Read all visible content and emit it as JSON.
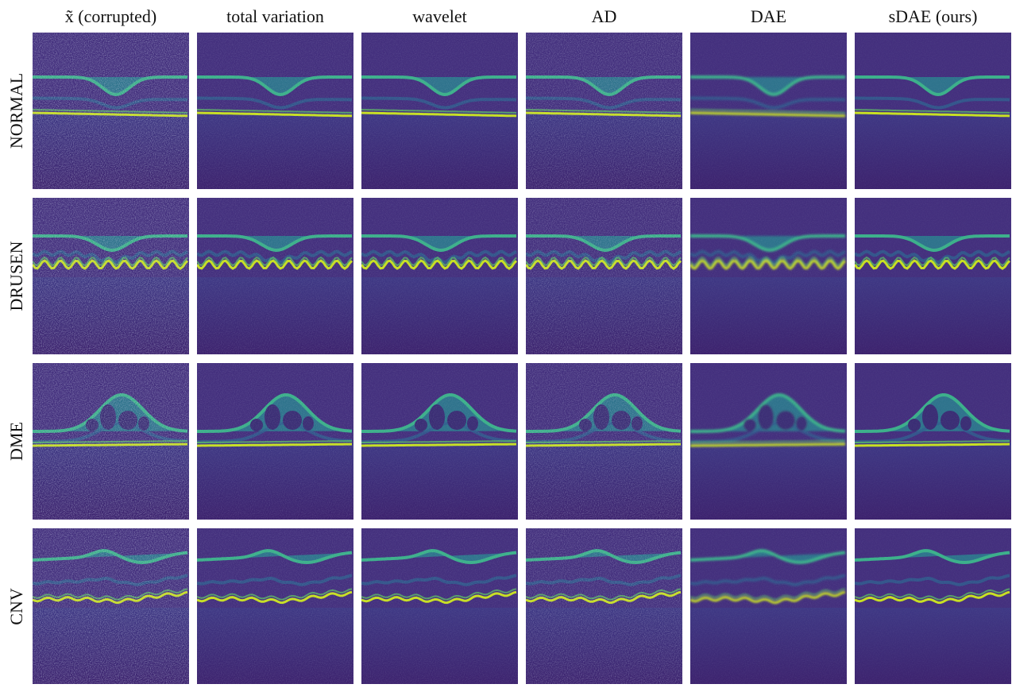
{
  "columns": [
    "x̃ (corrupted)",
    "total variation",
    "wavelet",
    "AD",
    "DAE",
    "sDAE (ours)"
  ],
  "rows": [
    "NORMAL",
    "DRUSEN",
    "DME",
    "CNV"
  ]
}
